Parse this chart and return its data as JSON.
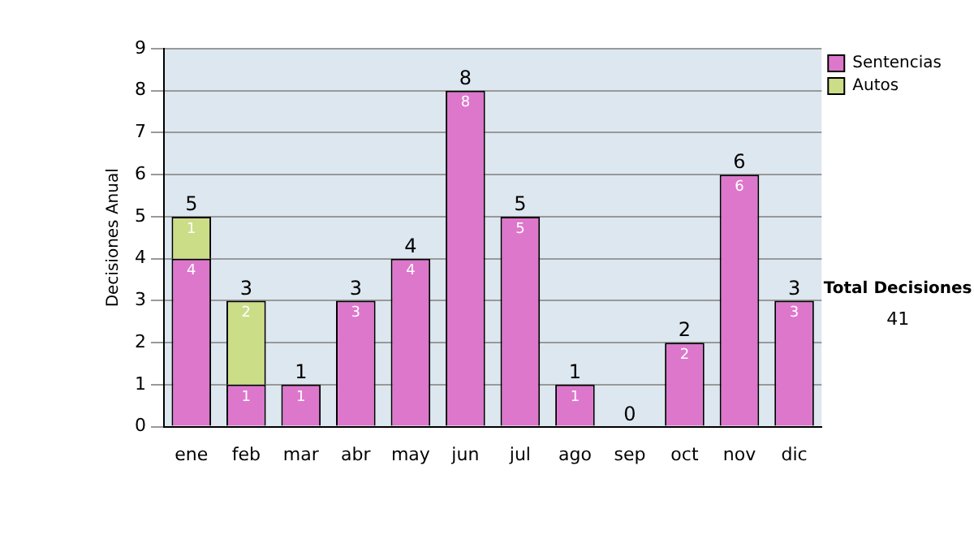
{
  "chart_data": {
    "type": "bar",
    "stacked": true,
    "ylabel": "Decisiones Anual",
    "categories": [
      "ene",
      "feb",
      "mar",
      "abr",
      "may",
      "jun",
      "jul",
      "ago",
      "sep",
      "oct",
      "nov",
      "dic"
    ],
    "series": [
      {
        "name": "Sentencias",
        "color": "#dd77cc",
        "values": [
          4,
          1,
          1,
          3,
          4,
          8,
          5,
          1,
          0,
          2,
          6,
          3
        ],
        "value_labels": [
          "4",
          "1",
          "1",
          "3",
          "4",
          "8",
          "5",
          "1",
          null,
          "2",
          "6",
          "3"
        ]
      },
      {
        "name": "Autos",
        "color": "#ccdd88",
        "values": [
          1,
          2,
          0,
          0,
          0,
          0,
          0,
          0,
          0,
          0,
          0,
          0
        ],
        "value_labels": [
          "1",
          "2",
          null,
          null,
          null,
          null,
          null,
          null,
          null,
          null,
          null,
          null
        ]
      }
    ],
    "totals": [
      "5",
      "3",
      "1",
      "3",
      "4",
      "8",
      "5",
      "1",
      "0",
      "2",
      "6",
      "3"
    ],
    "ylim": [
      0,
      9
    ],
    "yticks": [
      0,
      1,
      2,
      3,
      4,
      5,
      6,
      7,
      8,
      9
    ],
    "grid": "y",
    "legend": "right",
    "annotations": [
      "Total Decisiones",
      "41"
    ]
  }
}
